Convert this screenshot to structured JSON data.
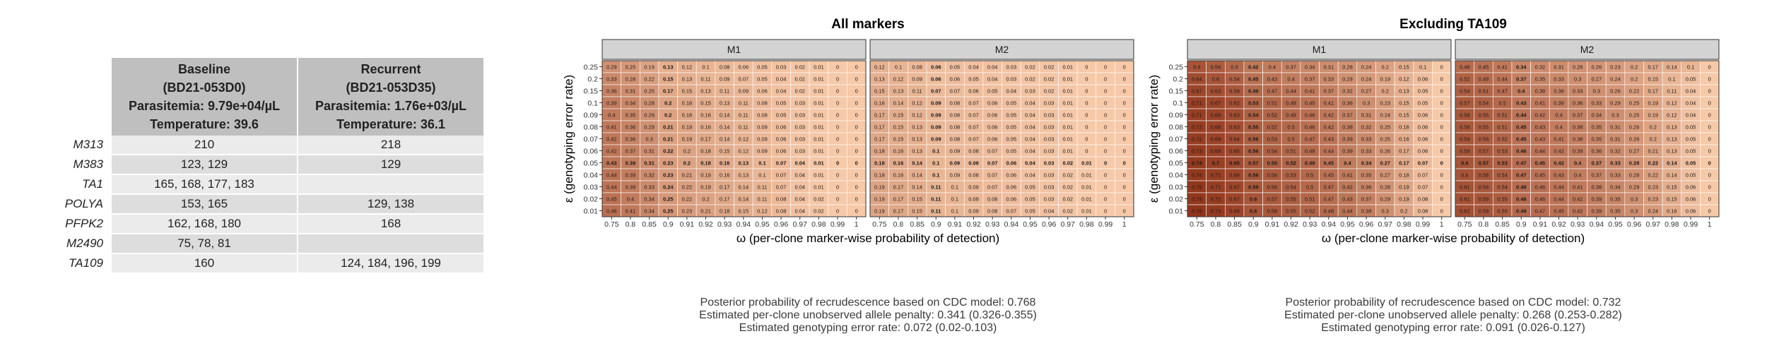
{
  "table": {
    "headers": [
      "Baseline\n(BD21-053D0)\nParasitemia: 9.79e+04/µL\nTemperature: 39.6",
      "Recurrent\n(BD21-053D35)\nParasitemia: 1.76e+03/µL\nTemperature: 36.1"
    ],
    "rows": [
      {
        "marker": "M313",
        "baseline": "210",
        "recurrent": "218"
      },
      {
        "marker": "M383",
        "baseline": "123, 129",
        "recurrent": "129"
      },
      {
        "marker": "TA1",
        "baseline": "165, 168, 177, 183",
        "recurrent": ""
      },
      {
        "marker": "POLYA",
        "baseline": "153, 165",
        "recurrent": "129, 138"
      },
      {
        "marker": "PFPK2",
        "baseline": "162, 168, 180",
        "recurrent": "168"
      },
      {
        "marker": "M2490",
        "baseline": "75, 78, 81",
        "recurrent": ""
      },
      {
        "marker": "TA109",
        "baseline": "160",
        "recurrent": "124, 184, 196, 199"
      }
    ]
  },
  "chart_data": [
    {
      "type": "heatmap",
      "title": "All markers",
      "xlabel": "ω (per-clone marker-wise probability of detection)",
      "ylabel": "ε (genotyping error rate)",
      "x_ticks": [
        "0.75",
        "0.8",
        "0.85",
        "0.9",
        "0.91",
        "0.92",
        "0.93",
        "0.94",
        "0.95",
        "0.96",
        "0.97",
        "0.98",
        "0.99",
        "1"
      ],
      "y_ticks": [
        "0.25",
        "0.2",
        "0.15",
        "0.1",
        "0.09",
        "0.08",
        "0.07",
        "0.06",
        "0.05",
        "0.04",
        "0.03",
        "0.02",
        "0.01"
      ],
      "facets": [
        {
          "label": "M1",
          "highlight_row": "0.05",
          "values": [
            [
              0.29,
              0.25,
              0.19,
              0.13,
              0.12,
              0.1,
              0.08,
              0.06,
              0.05,
              0.03,
              0.02,
              0.01,
              0,
              0
            ],
            [
              0.33,
              0.28,
              0.22,
              0.15,
              0.13,
              0.11,
              0.09,
              0.07,
              0.05,
              0.04,
              0.02,
              0.01,
              0,
              0
            ],
            [
              0.36,
              0.31,
              0.25,
              0.17,
              0.15,
              0.13,
              0.11,
              0.09,
              0.06,
              0.04,
              0.02,
              0.01,
              0,
              0
            ],
            [
              0.39,
              0.34,
              0.28,
              0.2,
              0.18,
              0.15,
              0.13,
              0.11,
              0.08,
              0.05,
              0.03,
              0.01,
              0,
              0
            ],
            [
              0.4,
              0.35,
              0.29,
              0.2,
              0.18,
              0.16,
              0.14,
              0.11,
              0.08,
              0.05,
              0.03,
              0.01,
              0,
              0
            ],
            [
              0.41,
              0.36,
              0.29,
              0.21,
              0.19,
              0.16,
              0.14,
              0.11,
              0.09,
              0.06,
              0.03,
              0.01,
              0,
              0
            ],
            [
              0.42,
              0.36,
              0.3,
              0.21,
              0.19,
              0.17,
              0.14,
              0.12,
              0.09,
              0.06,
              0.03,
              0.01,
              0,
              0
            ],
            [
              0.42,
              0.37,
              0.31,
              0.22,
              0.2,
              0.18,
              0.15,
              0.12,
              0.09,
              0.06,
              0.03,
              0.01,
              0,
              0
            ],
            [
              0.43,
              0.38,
              0.31,
              0.23,
              0.2,
              0.18,
              0.16,
              0.13,
              0.1,
              0.07,
              0.04,
              0.01,
              0,
              0
            ],
            [
              0.44,
              0.39,
              0.32,
              0.23,
              0.21,
              0.19,
              0.16,
              0.13,
              0.1,
              0.07,
              0.04,
              0.01,
              0,
              0
            ],
            [
              0.44,
              0.39,
              0.33,
              0.24,
              0.22,
              0.19,
              0.17,
              0.14,
              0.11,
              0.07,
              0.04,
              0.01,
              0,
              0
            ],
            [
              0.45,
              0.4,
              0.34,
              0.25,
              0.22,
              0.2,
              0.17,
              0.14,
              0.11,
              0.08,
              0.04,
              0.02,
              0,
              0
            ],
            [
              0.46,
              0.41,
              0.34,
              0.25,
              0.23,
              0.21,
              0.18,
              0.15,
              0.12,
              0.08,
              0.04,
              0.02,
              0,
              0
            ]
          ]
        },
        {
          "label": "M2",
          "highlight_row": "0.05",
          "values": [
            [
              0.12,
              0.1,
              0.08,
              0.06,
              0.05,
              0.04,
              0.04,
              0.03,
              0.02,
              0.02,
              0.01,
              0,
              0,
              0
            ],
            [
              0.13,
              0.12,
              0.09,
              0.06,
              0.06,
              0.05,
              0.04,
              0.03,
              0.02,
              0.02,
              0.01,
              0,
              0,
              0
            ],
            [
              0.15,
              0.13,
              0.11,
              0.07,
              0.07,
              0.06,
              0.05,
              0.04,
              0.03,
              0.02,
              0.01,
              0,
              0,
              0
            ],
            [
              0.16,
              0.14,
              0.12,
              0.09,
              0.08,
              0.07,
              0.06,
              0.05,
              0.04,
              0.03,
              0.01,
              0,
              0,
              0
            ],
            [
              0.17,
              0.15,
              0.12,
              0.09,
              0.08,
              0.07,
              0.06,
              0.05,
              0.04,
              0.03,
              0.01,
              0,
              0,
              0
            ],
            [
              0.17,
              0.15,
              0.13,
              0.09,
              0.08,
              0.07,
              0.06,
              0.05,
              0.04,
              0.03,
              0.01,
              0,
              0,
              0
            ],
            [
              0.17,
              0.15,
              0.13,
              0.09,
              0.08,
              0.07,
              0.06,
              0.05,
              0.04,
              0.03,
              0.01,
              0,
              0,
              0
            ],
            [
              0.18,
              0.16,
              0.13,
              0.1,
              0.09,
              0.08,
              0.07,
              0.05,
              0.04,
              0.03,
              0.01,
              0,
              0,
              0
            ],
            [
              0.18,
              0.16,
              0.14,
              0.1,
              0.09,
              0.08,
              0.07,
              0.06,
              0.04,
              0.03,
              0.02,
              0.01,
              0,
              0
            ],
            [
              0.18,
              0.16,
              0.14,
              0.1,
              0.09,
              0.08,
              0.07,
              0.06,
              0.04,
              0.03,
              0.02,
              0.01,
              0,
              0
            ],
            [
              0.19,
              0.17,
              0.14,
              0.11,
              0.1,
              0.09,
              0.07,
              0.06,
              0.05,
              0.03,
              0.02,
              0.01,
              0,
              0
            ],
            [
              0.19,
              0.17,
              0.15,
              0.11,
              0.1,
              0.09,
              0.08,
              0.06,
              0.05,
              0.03,
              0.02,
              0.01,
              0,
              0
            ],
            [
              0.19,
              0.17,
              0.15,
              0.11,
              0.1,
              0.09,
              0.08,
              0.07,
              0.05,
              0.04,
              0.02,
              0.01,
              0,
              0
            ]
          ]
        }
      ],
      "annotations": [
        "Posterior probability of recrudescence based on CDC model: 0.768",
        "Estimated per-clone unobserved allele penalty: 0.341 (0.326-0.355)",
        "Estimated genotyping error rate: 0.072 (0.02-0.103)"
      ]
    },
    {
      "type": "heatmap",
      "title": "Excluding TA109",
      "xlabel": "ω (per-clone marker-wise probability of detection)",
      "ylabel": "ε (genotyping error rate)",
      "x_ticks": [
        "0.75",
        "0.8",
        "0.85",
        "0.9",
        "0.91",
        "0.92",
        "0.93",
        "0.94",
        "0.95",
        "0.96",
        "0.97",
        "0.98",
        "0.99",
        "1"
      ],
      "y_ticks": [
        "0.25",
        "0.2",
        "0.15",
        "0.1",
        "0.09",
        "0.08",
        "0.07",
        "0.06",
        "0.05",
        "0.04",
        "0.03",
        "0.02",
        "0.01"
      ],
      "facets": [
        {
          "label": "M1",
          "highlight_row": "0.05",
          "values": [
            [
              0.6,
              0.56,
              0.5,
              0.42,
              0.4,
              0.37,
              0.34,
              0.31,
              0.28,
              0.24,
              0.2,
              0.15,
              0.1,
              0
            ],
            [
              0.64,
              0.6,
              0.54,
              0.45,
              0.43,
              0.4,
              0.37,
              0.33,
              0.29,
              0.24,
              0.19,
              0.12,
              0.06,
              0
            ],
            [
              0.67,
              0.63,
              0.58,
              0.49,
              0.47,
              0.44,
              0.41,
              0.37,
              0.32,
              0.27,
              0.2,
              0.13,
              0.05,
              0
            ],
            [
              0.71,
              0.67,
              0.62,
              0.53,
              0.51,
              0.48,
              0.45,
              0.41,
              0.36,
              0.3,
              0.23,
              0.15,
              0.05,
              0
            ],
            [
              0.71,
              0.68,
              0.63,
              0.54,
              0.52,
              0.49,
              0.46,
              0.42,
              0.37,
              0.31,
              0.24,
              0.15,
              0.06,
              0
            ],
            [
              0.72,
              0.68,
              0.63,
              0.55,
              0.52,
              0.5,
              0.46,
              0.42,
              0.38,
              0.32,
              0.25,
              0.16,
              0.06,
              0
            ],
            [
              0.72,
              0.69,
              0.64,
              0.56,
              0.53,
              0.5,
              0.47,
              0.43,
              0.39,
              0.33,
              0.25,
              0.16,
              0.06,
              0
            ],
            [
              0.73,
              0.69,
              0.65,
              0.56,
              0.54,
              0.51,
              0.48,
              0.44,
              0.39,
              0.33,
              0.26,
              0.17,
              0.06,
              0
            ],
            [
              0.74,
              0.7,
              0.65,
              0.57,
              0.55,
              0.52,
              0.49,
              0.45,
              0.4,
              0.34,
              0.27,
              0.17,
              0.07,
              0
            ],
            [
              0.74,
              0.71,
              0.66,
              0.58,
              0.56,
              0.53,
              0.5,
              0.45,
              0.41,
              0.35,
              0.27,
              0.18,
              0.07,
              0
            ],
            [
              0.75,
              0.71,
              0.67,
              0.59,
              0.56,
              0.54,
              0.5,
              0.47,
              0.42,
              0.36,
              0.28,
              0.19,
              0.07,
              0
            ],
            [
              0.75,
              0.72,
              0.67,
              0.6,
              0.57,
              0.55,
              0.51,
              0.47,
              0.43,
              0.37,
              0.29,
              0.19,
              0.08,
              0
            ],
            [
              0.76,
              0.73,
              0.68,
              0.6,
              0.58,
              0.55,
              0.52,
              0.48,
              0.44,
              0.38,
              0.3,
              0.2,
              0.08,
              0
            ]
          ]
        },
        {
          "label": "M2",
          "highlight_row": "0.05",
          "values": [
            [
              0.48,
              0.45,
              0.41,
              0.34,
              0.32,
              0.31,
              0.28,
              0.26,
              0.23,
              0.2,
              0.17,
              0.14,
              0.1,
              0
            ],
            [
              0.52,
              0.48,
              0.44,
              0.37,
              0.35,
              0.33,
              0.3,
              0.27,
              0.24,
              0.2,
              0.15,
              0.1,
              0.05,
              0
            ],
            [
              0.54,
              0.51,
              0.47,
              0.4,
              0.38,
              0.36,
              0.33,
              0.3,
              0.26,
              0.22,
              0.17,
              0.11,
              0.04,
              0
            ],
            [
              0.57,
              0.54,
              0.5,
              0.43,
              0.41,
              0.39,
              0.36,
              0.33,
              0.29,
              0.25,
              0.19,
              0.12,
              0.04,
              0
            ],
            [
              0.58,
              0.55,
              0.51,
              0.44,
              0.42,
              0.4,
              0.37,
              0.34,
              0.3,
              0.25,
              0.19,
              0.12,
              0.04,
              0
            ],
            [
              0.58,
              0.55,
              0.51,
              0.45,
              0.43,
              0.4,
              0.38,
              0.35,
              0.31,
              0.26,
              0.2,
              0.13,
              0.05,
              0
            ],
            [
              0.59,
              0.56,
              0.52,
              0.45,
              0.43,
              0.41,
              0.38,
              0.35,
              0.31,
              0.26,
              0.2,
              0.13,
              0.05,
              0
            ],
            [
              0.59,
              0.57,
              0.53,
              0.46,
              0.44,
              0.42,
              0.39,
              0.36,
              0.32,
              0.27,
              0.21,
              0.13,
              0.05,
              0
            ],
            [
              0.6,
              0.57,
              0.53,
              0.47,
              0.45,
              0.42,
              0.4,
              0.37,
              0.33,
              0.28,
              0.22,
              0.14,
              0.05,
              0
            ],
            [
              0.6,
              0.58,
              0.54,
              0.47,
              0.45,
              0.43,
              0.4,
              0.37,
              0.33,
              0.28,
              0.22,
              0.14,
              0.05,
              0
            ],
            [
              0.61,
              0.58,
              0.54,
              0.48,
              0.46,
              0.44,
              0.41,
              0.38,
              0.34,
              0.29,
              0.23,
              0.15,
              0.06,
              0
            ],
            [
              0.61,
              0.59,
              0.55,
              0.48,
              0.46,
              0.44,
              0.42,
              0.39,
              0.35,
              0.3,
              0.23,
              0.15,
              0.06,
              0
            ],
            [
              0.62,
              0.59,
              0.55,
              0.49,
              0.47,
              0.45,
              0.42,
              0.39,
              0.35,
              0.3,
              0.24,
              0.16,
              0.06,
              0
            ]
          ]
        }
      ],
      "annotations": [
        "Posterior probability of recrudescence based on CDC model: 0.732",
        "Estimated per-clone unobserved allele penalty: 0.268 (0.253-0.282)",
        "Estimated genotyping error rate: 0.091 (0.026-0.127)"
      ]
    }
  ],
  "colors": {
    "low": "#f6c9a8",
    "high": "#8c2d12",
    "strip": "#d3d3d3",
    "border": "#000000"
  }
}
